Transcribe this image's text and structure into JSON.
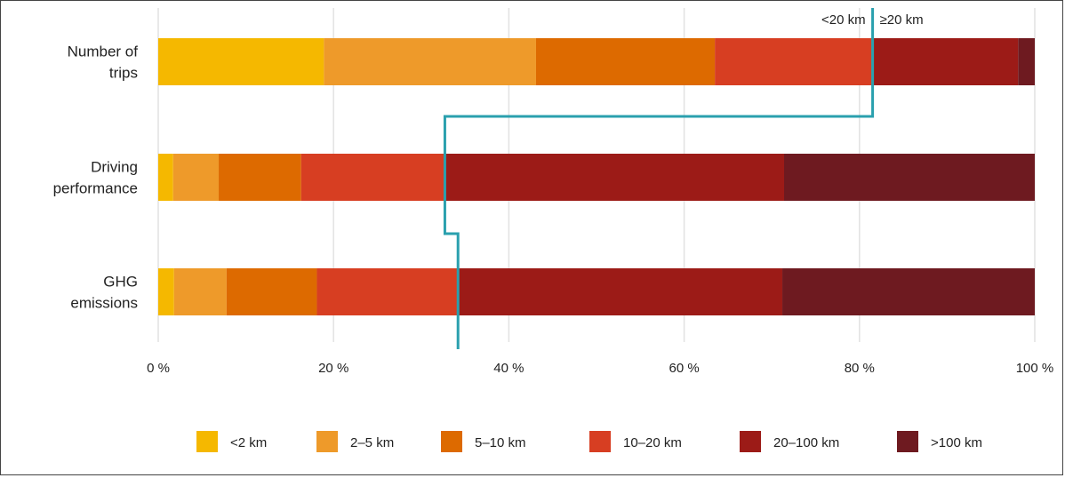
{
  "chart_data": {
    "type": "bar",
    "orientation": "horizontal",
    "stacked": true,
    "normalized_percent": true,
    "categories": [
      [
        "Number of",
        "trips"
      ],
      [
        "Driving",
        "performance"
      ],
      [
        "GHG",
        "emissions"
      ]
    ],
    "series": [
      {
        "name": "<2 km",
        "color": "#F5B800",
        "values": [
          18.9,
          1.7,
          1.8
        ]
      },
      {
        "name": "2–5 km",
        "color": "#EE9A2A",
        "values": [
          24.2,
          5.2,
          6.0
        ]
      },
      {
        "name": "5–10 km",
        "color": "#DD6A00",
        "values": [
          20.4,
          9.4,
          10.3
        ]
      },
      {
        "name": "10–20 km",
        "color": "#D73E22",
        "values": [
          18.0,
          16.4,
          16.1
        ]
      },
      {
        "name": "20–100 km",
        "color": "#9C1B17",
        "values": [
          16.6,
          38.7,
          37.0
        ]
      },
      {
        "name": ">100 km",
        "color": "#6E1A20",
        "values": [
          1.9,
          28.6,
          28.8
        ]
      }
    ],
    "x_ticks": [
      "0 %",
      "20 %",
      "40 %",
      "60 %",
      "80 %",
      "100 %"
    ],
    "xlim": [
      0,
      100
    ],
    "grid": "vertical",
    "legend": "bottom",
    "threshold_line": {
      "color": "#2AA0AE",
      "labels": [
        "<20 km",
        "≥20 km"
      ],
      "cumulative_below_20km": [
        81.5,
        32.7,
        34.2
      ]
    }
  }
}
